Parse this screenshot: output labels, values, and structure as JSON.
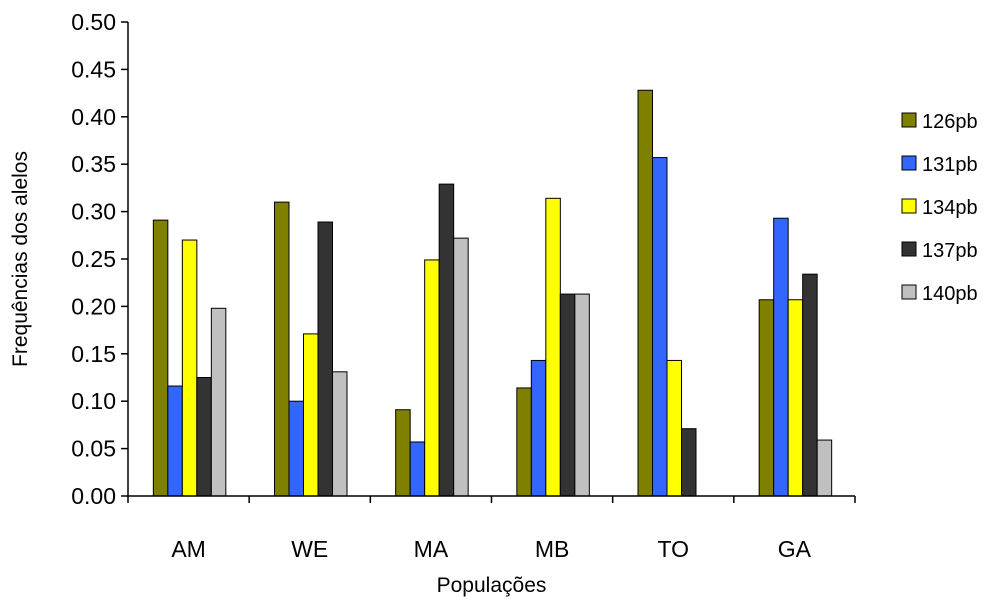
{
  "chart_data": {
    "type": "bar",
    "title": "",
    "xlabel": "Populações",
    "ylabel": "Frequências dos alelos",
    "ylim": [
      0,
      0.5
    ],
    "yticks": [
      "0.00",
      "0.05",
      "0.10",
      "0.15",
      "0.20",
      "0.25",
      "0.30",
      "0.35",
      "0.40",
      "0.45",
      "0.50"
    ],
    "grid": false,
    "legend_position": "right",
    "categories": [
      "AM",
      "WE",
      "MA",
      "MB",
      "TO",
      "GA"
    ],
    "series": [
      {
        "name": "126pb",
        "color": "#808000",
        "values": [
          0.291,
          0.31,
          0.091,
          0.114,
          0.428,
          0.207
        ]
      },
      {
        "name": "131pb",
        "color": "#3366FF",
        "values": [
          0.116,
          0.1,
          0.057,
          0.143,
          0.357,
          0.293
        ]
      },
      {
        "name": "134pb",
        "color": "#FFFF00",
        "values": [
          0.27,
          0.171,
          0.249,
          0.314,
          0.143,
          0.207
        ]
      },
      {
        "name": "137pb",
        "color": "#333333",
        "values": [
          0.125,
          0.289,
          0.329,
          0.213,
          0.071,
          0.234
        ]
      },
      {
        "name": "140pb",
        "color": "#C0C0C0",
        "values": [
          0.198,
          0.131,
          0.272,
          0.213,
          0.0,
          0.059
        ]
      }
    ]
  }
}
